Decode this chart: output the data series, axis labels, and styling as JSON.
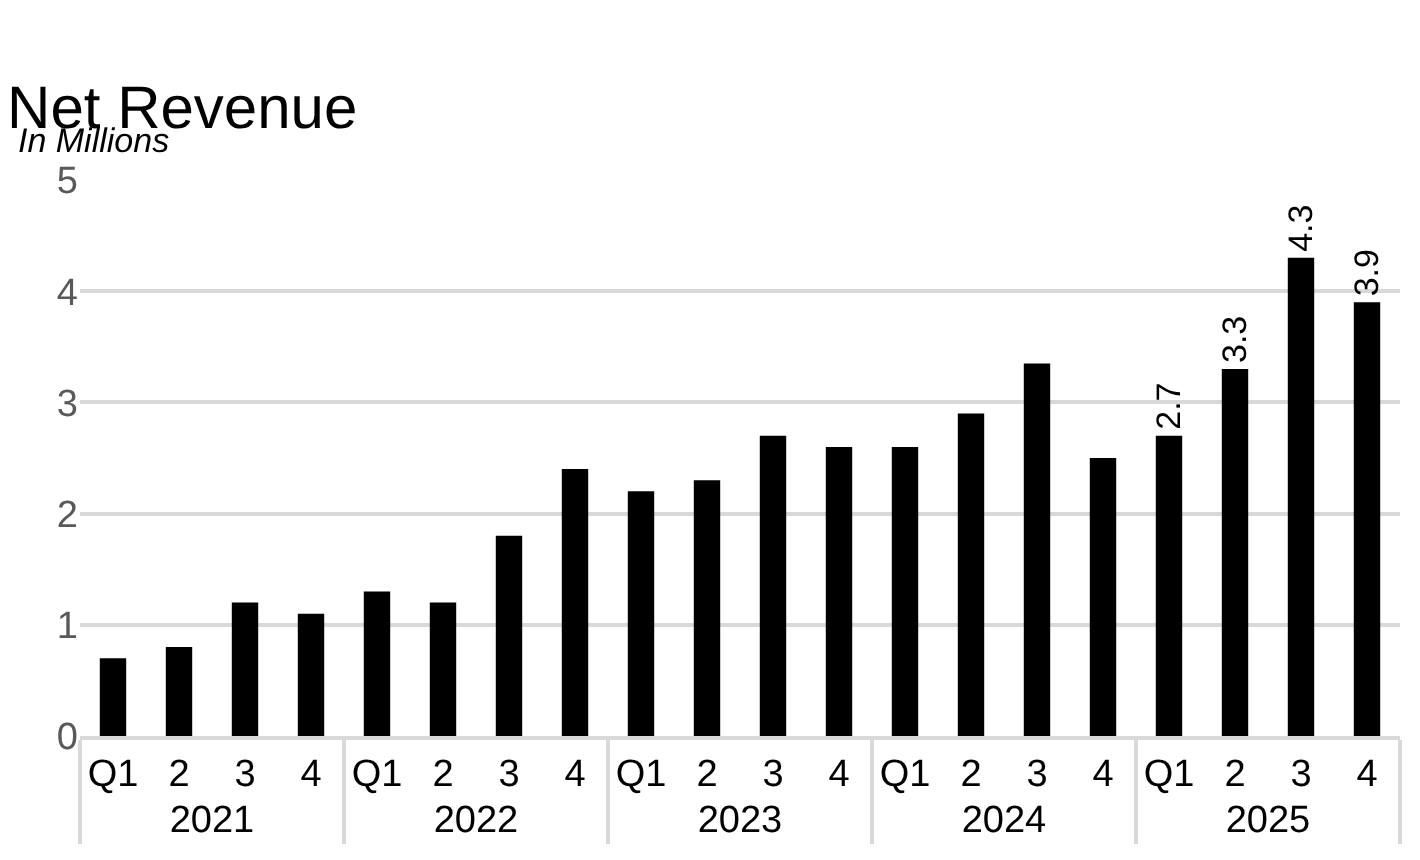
{
  "chart_data": {
    "type": "bar",
    "title": "Net Revenue",
    "subtitle": "In Millions",
    "categories": [
      "Q1",
      "2",
      "3",
      "4",
      "Q1",
      "2",
      "3",
      "4",
      "Q1",
      "2",
      "3",
      "4",
      "Q1",
      "2",
      "3",
      "4",
      "Q1",
      "2",
      "3",
      "4"
    ],
    "annotations": [
      "2021",
      "2022",
      "2023",
      "2024",
      "2025"
    ],
    "values": [
      0.7,
      0.8,
      1.2,
      1.1,
      1.3,
      1.2,
      1.8,
      2.4,
      2.2,
      2.3,
      2.7,
      2.6,
      2.6,
      2.9,
      3.35,
      2.5,
      2.7,
      3.3,
      4.3,
      3.9
    ],
    "value_labels": [
      null,
      null,
      null,
      null,
      null,
      null,
      null,
      null,
      null,
      null,
      null,
      null,
      null,
      null,
      null,
      null,
      "2.7",
      "3.3",
      "4.3",
      "3.9"
    ],
    "color": "#000000",
    "ylim": [
      0,
      5
    ],
    "yticks": [
      0,
      1,
      2,
      3,
      4,
      5
    ],
    "grid": "y",
    "legend": false
  }
}
